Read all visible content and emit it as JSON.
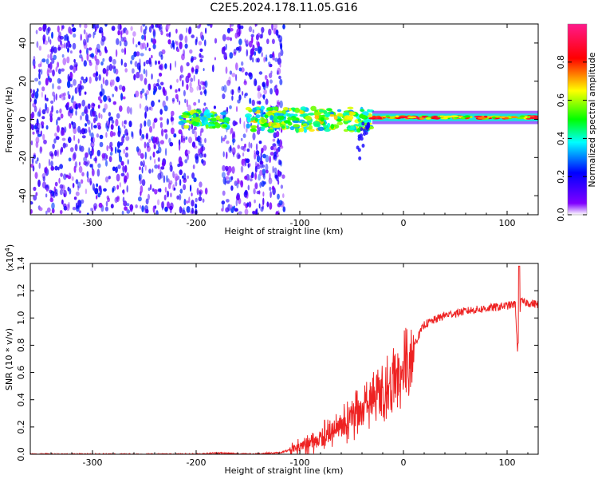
{
  "title": "C2E5.2024.178.11.05.G16",
  "chart_data": [
    {
      "type": "heatmap",
      "xlabel": "Height of straight line (km)",
      "ylabel": "Frequency (Hz)",
      "xlim": [
        -360,
        130
      ],
      "ylim": [
        -50,
        50
      ],
      "xticks": [
        -300,
        -200,
        -100,
        0,
        100
      ],
      "yticks": [
        -40,
        -20,
        0,
        20,
        40
      ],
      "colorbar": {
        "label": "Normalized spectral amplitude",
        "range": [
          0.0,
          1.0
        ],
        "ticks": [
          0.0,
          0.2,
          0.4,
          0.6,
          0.8
        ],
        "tick_labels": [
          "0.0",
          "0.2",
          "0.4",
          "0.6",
          "0.8"
        ],
        "colors": [
          "#ffffff",
          "#8000ff",
          "#0000ff",
          "#00ffff",
          "#00ff00",
          "#ffff00",
          "#ff0000",
          "#ff0080"
        ]
      },
      "regions": [
        {
          "x_range": [
            -360,
            -125
          ],
          "description": "noise",
          "amplitude": 0.15
        },
        {
          "x_range": [
            -215,
            -170
          ],
          "center_hz": 0,
          "amplitude": 0.45
        },
        {
          "x_range": [
            -150,
            -30
          ],
          "center_hz": 0,
          "amplitude": 0.5
        },
        {
          "x_range": [
            -30,
            130
          ],
          "center_hz": 1,
          "amplitude": 0.85
        }
      ],
      "grid": false
    },
    {
      "type": "line",
      "xlabel": "Height of straight line (km)",
      "ylabel": "SNR (10 * v/v)",
      "yscale_label": "(x10",
      "yscale_exp": "4",
      "yscale_close": ")",
      "xlim": [
        -360,
        130
      ],
      "ylim": [
        0.0,
        1.4
      ],
      "xticks": [
        -300,
        -200,
        -100,
        0,
        100
      ],
      "yticks": [
        0.0,
        0.2,
        0.4,
        0.6,
        0.8,
        1.0,
        1.2,
        1.4
      ],
      "ytick_labels": [
        "0.0",
        "0.2",
        "0.4",
        "0.6",
        "0.8",
        "1.0",
        "1.2",
        "1.4"
      ],
      "series": [
        {
          "color": "#ee2222",
          "x": [
            -360,
            -300,
            -250,
            -200,
            -180,
            -150,
            -120,
            -100,
            -80,
            -60,
            -40,
            -30,
            -20,
            -10,
            0,
            10,
            20,
            40,
            60,
            80,
            100,
            108,
            110,
            113,
            120,
            130
          ],
          "y": [
            0.0,
            0.0,
            0.0,
            0.0,
            0.01,
            0.0,
            0.01,
            0.05,
            0.12,
            0.2,
            0.32,
            0.38,
            0.46,
            0.55,
            0.62,
            0.8,
            0.95,
            1.02,
            1.05,
            1.07,
            1.09,
            1.1,
            0.75,
            1.12,
            1.11,
            1.1
          ]
        }
      ],
      "grid": false
    }
  ]
}
